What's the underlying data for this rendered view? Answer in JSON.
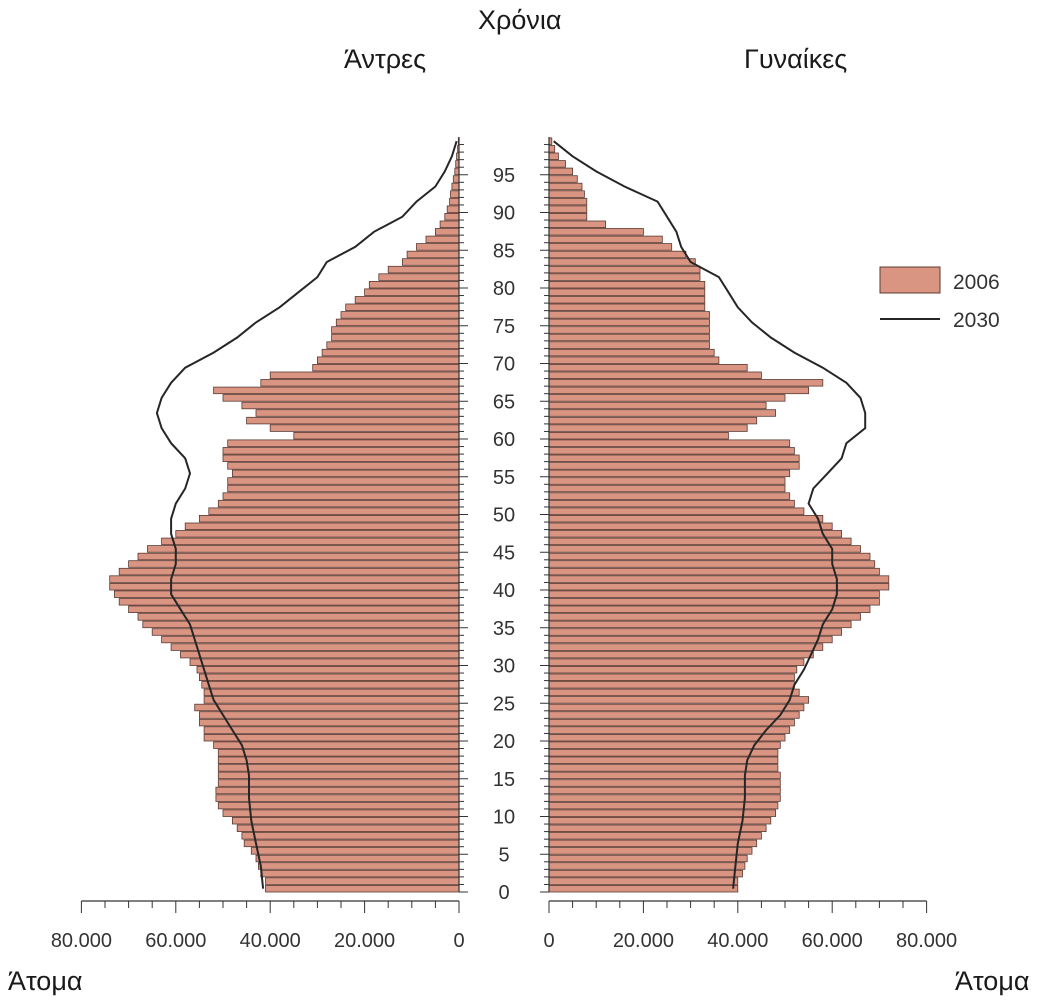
{
  "labels": {
    "years": "Χρόνια",
    "men": "Άντρες",
    "women": "Γυναίκες",
    "persons_left": "Άτομα",
    "persons_right": "Άτομα"
  },
  "colors": {
    "bar_fill": "#d99482",
    "bar_stroke": "#5a3a32",
    "line": "#262626",
    "axis": "#333333"
  },
  "chart_data": {
    "type": "bar",
    "orientation": "horizontal population pyramid",
    "age_axis": {
      "min": 0,
      "max": 99,
      "ticks": [
        0,
        5,
        10,
        15,
        20,
        25,
        30,
        35,
        40,
        45,
        50,
        55,
        60,
        65,
        70,
        75,
        80,
        85,
        90,
        95
      ]
    },
    "x_axis_men": {
      "range": [
        0,
        80000
      ],
      "tick_labels": [
        "80.000",
        "60.000",
        "40.000",
        "20.000",
        "0"
      ]
    },
    "x_axis_women": {
      "range": [
        0,
        80000
      ],
      "tick_labels": [
        "0",
        "20.000",
        "40.000",
        "60.000",
        "80.000"
      ]
    },
    "legend": {
      "placement": "right",
      "entries": [
        {
          "name": "2006",
          "kind": "bar"
        },
        {
          "name": "2030",
          "kind": "line"
        }
      ]
    },
    "series": [
      {
        "name": "2006",
        "kind": "bar",
        "men": [
          41000,
          41000,
          42000,
          42500,
          43000,
          44000,
          45500,
          46000,
          47000,
          48000,
          50000,
          51000,
          51500,
          51500,
          51000,
          51000,
          51000,
          51000,
          51000,
          52000,
          54000,
          54000,
          55000,
          55000,
          56000,
          54000,
          54000,
          54500,
          55000,
          55500,
          57000,
          59000,
          61000,
          63000,
          65000,
          67000,
          68000,
          70000,
          72000,
          73000,
          74000,
          74000,
          72000,
          70000,
          68000,
          66000,
          63000,
          60000,
          58000,
          55000,
          53000,
          51000,
          50000,
          49000,
          49000,
          48000,
          49000,
          50000,
          50000,
          49000,
          35000,
          40000,
          45000,
          43000,
          46000,
          50000,
          52000,
          42000,
          40000,
          31000,
          30000,
          29000,
          28000,
          27000,
          27000,
          26000,
          25000,
          24000,
          22000,
          20000,
          19000,
          17000,
          15000,
          12000,
          11000,
          9000,
          7000,
          5000,
          4000,
          3000,
          2500,
          2000,
          1800,
          1500,
          1200,
          900,
          700,
          500,
          300,
          150
        ],
        "women": [
          40000,
          40000,
          41000,
          41500,
          42000,
          43000,
          44000,
          45000,
          46000,
          47000,
          48000,
          48500,
          49000,
          49000,
          49000,
          49000,
          48500,
          48500,
          48500,
          49000,
          50000,
          51000,
          52000,
          53000,
          54000,
          55000,
          53000,
          52000,
          52000,
          52500,
          54000,
          56000,
          58000,
          60000,
          62000,
          64000,
          66000,
          68000,
          70000,
          70000,
          72000,
          72000,
          70000,
          69000,
          68000,
          66000,
          64000,
          62000,
          60000,
          58000,
          54000,
          52000,
          51000,
          50000,
          50000,
          51000,
          53000,
          53000,
          52000,
          51000,
          38000,
          42000,
          44000,
          48000,
          46000,
          50000,
          55000,
          58000,
          45000,
          42000,
          36000,
          35000,
          34000,
          34000,
          34000,
          34000,
          34000,
          33000,
          33000,
          33000,
          33000,
          32000,
          32000,
          31000,
          29000,
          26000,
          24000,
          20000,
          12000,
          8000,
          8000,
          8000,
          7500,
          7000,
          6000,
          5000,
          3500,
          2000,
          1200,
          600
        ]
      },
      {
        "name": "2030",
        "kind": "line",
        "men": [
          [
            0,
            41500
          ],
          [
            3,
            42000
          ],
          [
            6,
            43000
          ],
          [
            9,
            44000
          ],
          [
            12,
            44500
          ],
          [
            15,
            44500
          ],
          [
            17,
            45000
          ],
          [
            19,
            46000
          ],
          [
            21,
            48000
          ],
          [
            23,
            50000
          ],
          [
            25,
            52000
          ],
          [
            27,
            53000
          ],
          [
            29,
            54000
          ],
          [
            31,
            55000
          ],
          [
            33,
            56000
          ],
          [
            35,
            57000
          ],
          [
            37,
            59000
          ],
          [
            39,
            61000
          ],
          [
            41,
            61000
          ],
          [
            43,
            60000
          ],
          [
            45,
            60000
          ],
          [
            47,
            61000
          ],
          [
            49,
            61000
          ],
          [
            51,
            60000
          ],
          [
            53,
            58000
          ],
          [
            55,
            57000
          ],
          [
            57,
            58000
          ],
          [
            59,
            61000
          ],
          [
            61,
            63000
          ],
          [
            63,
            64000
          ],
          [
            65,
            63000
          ],
          [
            67,
            61000
          ],
          [
            69,
            58000
          ],
          [
            71,
            52000
          ],
          [
            73,
            47000
          ],
          [
            75,
            43000
          ],
          [
            77,
            38000
          ],
          [
            79,
            34000
          ],
          [
            81,
            30000
          ],
          [
            83,
            28000
          ],
          [
            85,
            22000
          ],
          [
            87,
            18000
          ],
          [
            89,
            12000
          ],
          [
            91,
            9000
          ],
          [
            93,
            5000
          ],
          [
            95,
            3000
          ],
          [
            97,
            1500
          ],
          [
            99,
            500
          ]
        ],
        "women": [
          [
            0,
            39000
          ],
          [
            3,
            39500
          ],
          [
            6,
            40000
          ],
          [
            9,
            41000
          ],
          [
            12,
            41500
          ],
          [
            15,
            41500
          ],
          [
            17,
            42000
          ],
          [
            19,
            43500
          ],
          [
            21,
            46000
          ],
          [
            23,
            49000
          ],
          [
            25,
            51000
          ],
          [
            27,
            52000
          ],
          [
            29,
            54000
          ],
          [
            31,
            55500
          ],
          [
            33,
            57000
          ],
          [
            35,
            58000
          ],
          [
            37,
            60000
          ],
          [
            39,
            61000
          ],
          [
            41,
            61000
          ],
          [
            43,
            60000
          ],
          [
            45,
            60000
          ],
          [
            47,
            58000
          ],
          [
            49,
            57000
          ],
          [
            51,
            55000
          ],
          [
            53,
            56000
          ],
          [
            55,
            59000
          ],
          [
            57,
            62000
          ],
          [
            59,
            63000
          ],
          [
            61,
            67000
          ],
          [
            63,
            67000
          ],
          [
            65,
            66000
          ],
          [
            67,
            63000
          ],
          [
            69,
            58000
          ],
          [
            71,
            52000
          ],
          [
            73,
            47000
          ],
          [
            75,
            43000
          ],
          [
            77,
            40000
          ],
          [
            79,
            38000
          ],
          [
            81,
            36000
          ],
          [
            83,
            30000
          ],
          [
            85,
            28000
          ],
          [
            87,
            27000
          ],
          [
            89,
            25000
          ],
          [
            91,
            23000
          ],
          [
            93,
            16000
          ],
          [
            95,
            10000
          ],
          [
            97,
            5000
          ],
          [
            99,
            1000
          ]
        ]
      }
    ]
  }
}
